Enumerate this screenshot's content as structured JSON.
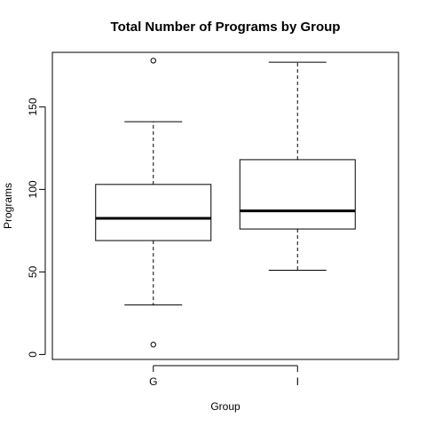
{
  "chart_data": {
    "type": "box",
    "title": "Total Number of Programs by Group",
    "xlabel": "Group",
    "ylabel": "Programs",
    "categories": [
      "G",
      "I"
    ],
    "ylim": [
      -3,
      183
    ],
    "y_ticks": [
      0,
      50,
      100,
      150
    ],
    "grid": false,
    "boxes": [
      {
        "category": "G",
        "whisker_low": 30,
        "q1": 69,
        "median": 82.5,
        "q3": 103,
        "whisker_high": 141,
        "outliers": [
          6,
          178
        ]
      },
      {
        "category": "I",
        "whisker_low": 51,
        "q1": 76,
        "median": 87,
        "q3": 118,
        "whisker_high": 177,
        "outliers": []
      }
    ]
  }
}
